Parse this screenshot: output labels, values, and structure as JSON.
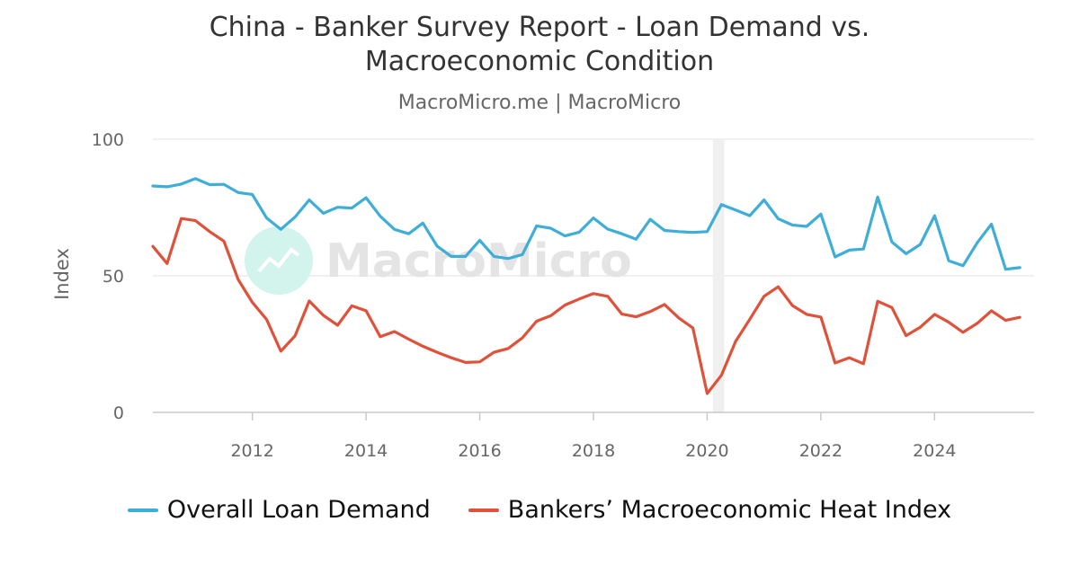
{
  "header": {
    "title_line1": "China - Banker Survey Report - Loan Demand vs.",
    "title_line2": "Macroeconomic Condition",
    "subtitle": "MacroMicro.me | MacroMicro"
  },
  "watermark": "MacroMicro",
  "chart_data": {
    "type": "line",
    "title": "China - Banker Survey Report - Loan Demand vs. Macroeconomic Condition",
    "subtitle": "MacroMicro.me | MacroMicro",
    "ylabel": "Index",
    "ylim": [
      0,
      100
    ],
    "xlim": [
      2010.25,
      2025.75
    ],
    "y_ticks": [
      0,
      50,
      100
    ],
    "x_ticks": [
      2012,
      2014,
      2016,
      2018,
      2020,
      2022,
      2024
    ],
    "grid": true,
    "shaded_period": [
      2020.1,
      2020.3
    ],
    "legend_position": "bottom",
    "x": [
      2010.25,
      2010.5,
      2010.75,
      2011,
      2011.25,
      2011.5,
      2011.75,
      2012,
      2012.25,
      2012.5,
      2012.75,
      2013,
      2013.25,
      2013.5,
      2013.75,
      2014,
      2014.25,
      2014.5,
      2014.75,
      2015,
      2015.25,
      2015.5,
      2015.75,
      2016,
      2016.25,
      2016.5,
      2016.75,
      2017,
      2017.25,
      2017.5,
      2017.75,
      2018,
      2018.25,
      2018.5,
      2018.75,
      2019,
      2019.25,
      2019.5,
      2019.75,
      2020,
      2020.25,
      2020.5,
      2020.75,
      2021,
      2021.25,
      2021.5,
      2021.75,
      2022,
      2022.25,
      2022.5,
      2022.75,
      2023,
      2023.25,
      2023.5,
      2023.75,
      2024,
      2024.25,
      2024.5,
      2024.75,
      2025,
      2025.25,
      2025.5
    ],
    "series": [
      {
        "name": "Overall Loan Demand",
        "color": "#3eadd8",
        "values": [
          82.9,
          82.6,
          83.6,
          85.6,
          83.4,
          83.5,
          80.5,
          79.8,
          71.2,
          67.0,
          71.5,
          77.8,
          72.9,
          75.1,
          74.8,
          78.6,
          71.8,
          67.0,
          65.4,
          69.3,
          60.9,
          57.1,
          57.1,
          63.0,
          57.1,
          56.3,
          57.8,
          68.3,
          67.4,
          64.6,
          66.0,
          71.2,
          67.1,
          65.4,
          63.4,
          70.7,
          66.6,
          66.2,
          65.9,
          66.2,
          76.1,
          74.1,
          72.0,
          77.8,
          70.9,
          68.6,
          68.1,
          72.6,
          56.9,
          59.4,
          59.8,
          78.8,
          62.4,
          58.1,
          61.5,
          72.0,
          55.5,
          53.7,
          62.1,
          68.9,
          52.4,
          53.0
        ]
      },
      {
        "name": "Bankers’ Macroeconomic Heat Index",
        "color": "#e0513a",
        "values": [
          60.8,
          54.5,
          71.0,
          70.2,
          66.2,
          62.7,
          48.7,
          40.3,
          34.0,
          22.4,
          28.0,
          40.8,
          35.5,
          31.9,
          39.0,
          37.2,
          27.7,
          29.6,
          26.8,
          24.2,
          22.0,
          20.0,
          18.3,
          18.5,
          22.0,
          23.4,
          27.3,
          33.4,
          35.4,
          39.3,
          41.5,
          43.5,
          42.5,
          36.0,
          35.0,
          36.9,
          39.5,
          34.6,
          30.9,
          6.9,
          13.6,
          26.0,
          34.1,
          42.5,
          46.0,
          39.1,
          35.9,
          34.9,
          18.1,
          20.0,
          17.8,
          40.7,
          38.4,
          28.1,
          31.2,
          35.9,
          33.0,
          29.3,
          32.6,
          37.2,
          33.7,
          34.8
        ]
      }
    ]
  }
}
